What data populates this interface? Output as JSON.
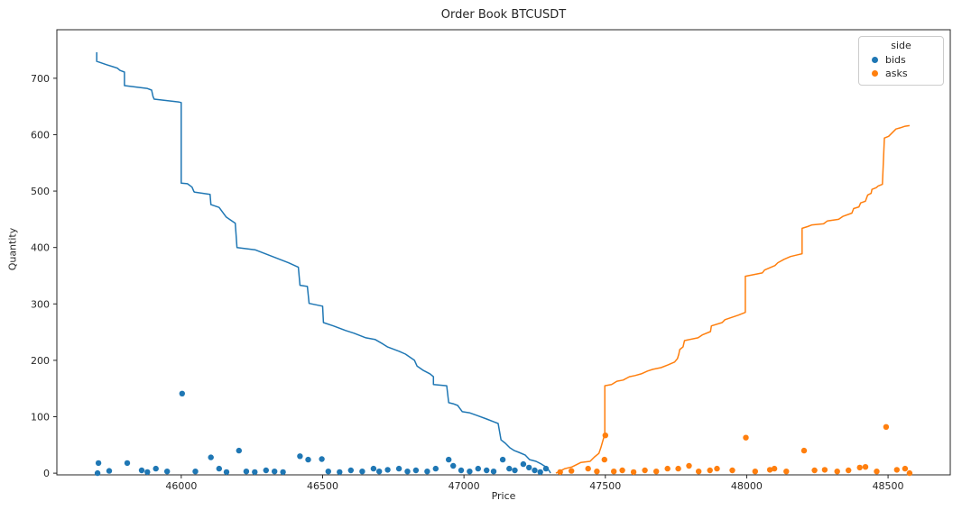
{
  "header": {
    "title": "Order Book BTCUSDT"
  },
  "axes": {
    "x_label": "Price",
    "y_label": "Quantity",
    "x_ticks": [
      46000,
      46500,
      47000,
      47500,
      48000,
      48500
    ],
    "y_ticks": [
      0,
      100,
      200,
      300,
      400,
      500,
      600,
      700
    ]
  },
  "legend": {
    "title": "side",
    "entries": [
      {
        "label": "bids",
        "color": "#1f77b4"
      },
      {
        "label": "asks",
        "color": "#ff7f0e"
      }
    ]
  },
  "chart_data": {
    "type": "line",
    "title": "Order Book BTCUSDT",
    "xlabel": "Price",
    "ylabel": "Quantity",
    "xlim": [
      45560,
      48720
    ],
    "ylim": [
      -3,
      786
    ],
    "x_ticks": [
      46000,
      46500,
      47000,
      47500,
      48000,
      48500
    ],
    "y_ticks": [
      0,
      100,
      200,
      300,
      400,
      500,
      600,
      700
    ],
    "grid": false,
    "legend_position": "upper right",
    "series": [
      {
        "name": "bids-cumulative-depth",
        "legend": "bids",
        "type": "line",
        "color": "#1f77b4",
        "line_width": 1.5,
        "points": [
          [
            45701,
            746
          ],
          [
            45701,
            730
          ],
          [
            45736,
            724
          ],
          [
            45774,
            718
          ],
          [
            45783,
            714
          ],
          [
            45799,
            711
          ],
          [
            45799,
            687
          ],
          [
            45879,
            682
          ],
          [
            45895,
            679
          ],
          [
            45900,
            668
          ],
          [
            45904,
            663
          ],
          [
            45990,
            658
          ],
          [
            46000,
            657
          ],
          [
            46000,
            514
          ],
          [
            46022,
            513
          ],
          [
            46038,
            507
          ],
          [
            46045,
            499
          ],
          [
            46048,
            498
          ],
          [
            46102,
            494
          ],
          [
            46105,
            476
          ],
          [
            46134,
            471
          ],
          [
            46159,
            454
          ],
          [
            46191,
            443
          ],
          [
            46197,
            400
          ],
          [
            46261,
            396
          ],
          [
            46379,
            373
          ],
          [
            46414,
            365
          ],
          [
            46420,
            333
          ],
          [
            46446,
            331
          ],
          [
            46452,
            301
          ],
          [
            46500,
            296
          ],
          [
            46503,
            267
          ],
          [
            46538,
            261
          ],
          [
            46580,
            253
          ],
          [
            46611,
            248
          ],
          [
            46653,
            240
          ],
          [
            46685,
            237
          ],
          [
            46713,
            229
          ],
          [
            46729,
            224
          ],
          [
            46771,
            216
          ],
          [
            46793,
            211
          ],
          [
            46825,
            200
          ],
          [
            46834,
            190
          ],
          [
            46857,
            182
          ],
          [
            46880,
            176
          ],
          [
            46892,
            171
          ],
          [
            46892,
            157
          ],
          [
            46939,
            155
          ],
          [
            46946,
            125
          ],
          [
            46962,
            123
          ],
          [
            46978,
            120
          ],
          [
            46994,
            109
          ],
          [
            47019,
            107
          ],
          [
            47048,
            102
          ],
          [
            47080,
            96
          ],
          [
            47105,
            91
          ],
          [
            47121,
            88
          ],
          [
            47131,
            59
          ],
          [
            47146,
            53
          ],
          [
            47162,
            45
          ],
          [
            47178,
            40
          ],
          [
            47194,
            37
          ],
          [
            47217,
            32
          ],
          [
            47232,
            24
          ],
          [
            47255,
            21
          ],
          [
            47274,
            16
          ],
          [
            47290,
            11
          ],
          [
            47303,
            3
          ],
          [
            47306,
            0
          ]
        ]
      },
      {
        "name": "asks-cumulative-depth",
        "legend": "asks",
        "type": "line",
        "color": "#ff7f0e",
        "line_width": 1.5,
        "points": [
          [
            47325,
            0
          ],
          [
            47357,
            8
          ],
          [
            47382,
            11
          ],
          [
            47414,
            19
          ],
          [
            47446,
            21
          ],
          [
            47462,
            29
          ],
          [
            47477,
            35
          ],
          [
            47484,
            45
          ],
          [
            47495,
            64
          ],
          [
            47498,
            67
          ],
          [
            47498,
            155
          ],
          [
            47522,
            157
          ],
          [
            47541,
            163
          ],
          [
            47563,
            165
          ],
          [
            47585,
            171
          ],
          [
            47605,
            173
          ],
          [
            47627,
            176
          ],
          [
            47649,
            181
          ],
          [
            47668,
            184
          ],
          [
            47697,
            187
          ],
          [
            47722,
            192
          ],
          [
            47745,
            197
          ],
          [
            47755,
            203
          ],
          [
            47760,
            211
          ],
          [
            47763,
            219
          ],
          [
            47775,
            224
          ],
          [
            47780,
            235
          ],
          [
            47828,
            240
          ],
          [
            47843,
            245
          ],
          [
            47872,
            251
          ],
          [
            47875,
            261
          ],
          [
            47913,
            267
          ],
          [
            47923,
            272
          ],
          [
            47970,
            280
          ],
          [
            47995,
            285
          ],
          [
            47995,
            349
          ],
          [
            48055,
            355
          ],
          [
            48063,
            360
          ],
          [
            48100,
            368
          ],
          [
            48110,
            373
          ],
          [
            48132,
            379
          ],
          [
            48155,
            384
          ],
          [
            48180,
            387
          ],
          [
            48196,
            389
          ],
          [
            48196,
            434
          ],
          [
            48215,
            437
          ],
          [
            48231,
            440
          ],
          [
            48272,
            442
          ],
          [
            48285,
            447
          ],
          [
            48325,
            450
          ],
          [
            48340,
            455
          ],
          [
            48372,
            461
          ],
          [
            48378,
            469
          ],
          [
            48397,
            472
          ],
          [
            48403,
            479
          ],
          [
            48420,
            482
          ],
          [
            48428,
            493
          ],
          [
            48440,
            496
          ],
          [
            48443,
            503
          ],
          [
            48458,
            506
          ],
          [
            48465,
            509
          ],
          [
            48480,
            512
          ],
          [
            48487,
            594
          ],
          [
            48502,
            597
          ],
          [
            48528,
            610
          ],
          [
            48543,
            612
          ],
          [
            48560,
            615
          ],
          [
            48576,
            616
          ]
        ]
      },
      {
        "name": "bids-order-sizes",
        "legend": "bids",
        "type": "scatter",
        "color": "#1f77b4",
        "marker_radius": 3.2,
        "points": [
          [
            45704,
            0
          ],
          [
            45707,
            18
          ],
          [
            45745,
            4
          ],
          [
            45809,
            18
          ],
          [
            45860,
            5
          ],
          [
            45880,
            2
          ],
          [
            45910,
            8
          ],
          [
            45950,
            3
          ],
          [
            46003,
            141
          ],
          [
            46050,
            3
          ],
          [
            46105,
            28
          ],
          [
            46134,
            8
          ],
          [
            46160,
            2
          ],
          [
            46204,
            40
          ],
          [
            46230,
            3
          ],
          [
            46260,
            2
          ],
          [
            46300,
            5
          ],
          [
            46330,
            3
          ],
          [
            46360,
            2
          ],
          [
            46420,
            30
          ],
          [
            46449,
            24
          ],
          [
            46497,
            25
          ],
          [
            46520,
            3
          ],
          [
            46560,
            2
          ],
          [
            46600,
            5
          ],
          [
            46640,
            3
          ],
          [
            46680,
            8
          ],
          [
            46700,
            3
          ],
          [
            46730,
            6
          ],
          [
            46770,
            8
          ],
          [
            46800,
            3
          ],
          [
            46830,
            5
          ],
          [
            46870,
            3
          ],
          [
            46900,
            8
          ],
          [
            46946,
            24
          ],
          [
            46962,
            13
          ],
          [
            46990,
            5
          ],
          [
            47020,
            3
          ],
          [
            47050,
            8
          ],
          [
            47080,
            5
          ],
          [
            47105,
            3
          ],
          [
            47137,
            24
          ],
          [
            47160,
            8
          ],
          [
            47180,
            5
          ],
          [
            47210,
            16
          ],
          [
            47230,
            10
          ],
          [
            47250,
            5
          ],
          [
            47270,
            2
          ],
          [
            47290,
            8
          ]
        ]
      },
      {
        "name": "asks-order-sizes",
        "legend": "asks",
        "type": "scatter",
        "color": "#ff7f0e",
        "marker_radius": 3.2,
        "points": [
          [
            47340,
            2
          ],
          [
            47380,
            4
          ],
          [
            47439,
            8
          ],
          [
            47470,
            3
          ],
          [
            47497,
            24
          ],
          [
            47500,
            67
          ],
          [
            47530,
            3
          ],
          [
            47560,
            5
          ],
          [
            47600,
            2
          ],
          [
            47640,
            5
          ],
          [
            47680,
            3
          ],
          [
            47720,
            8
          ],
          [
            47758,
            8
          ],
          [
            47796,
            13
          ],
          [
            47830,
            3
          ],
          [
            47870,
            5
          ],
          [
            47895,
            8
          ],
          [
            47949,
            5
          ],
          [
            47997,
            63
          ],
          [
            48030,
            3
          ],
          [
            48082,
            6
          ],
          [
            48098,
            8
          ],
          [
            48140,
            3
          ],
          [
            48203,
            40
          ],
          [
            48240,
            5
          ],
          [
            48276,
            6
          ],
          [
            48320,
            3
          ],
          [
            48360,
            5
          ],
          [
            48400,
            10
          ],
          [
            48420,
            11
          ],
          [
            48460,
            3
          ],
          [
            48493,
            82
          ],
          [
            48531,
            6
          ],
          [
            48560,
            8
          ],
          [
            48576,
            0
          ]
        ]
      }
    ]
  }
}
